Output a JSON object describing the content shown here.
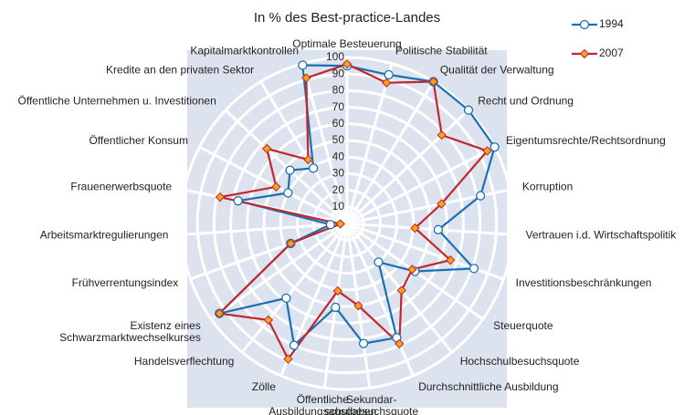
{
  "chart_data": {
    "type": "radar",
    "title": "In % des Best-practice-Landes",
    "categories": [
      "Optimale Besteuerung",
      "Politische Stabilität",
      "Qualität der Verwaltung",
      "Recht und Ordnung",
      "Eigentumsrechte/Rechtsordnung",
      "Korruption",
      "Vertrauen i.d. Wirtschaftspolitik",
      "Investitionsbeschränkungen",
      "Steuerquote",
      "Hochschulbesuchsquote",
      "Durchschnittliche Ausbildung",
      "Sekundar-\nschulbesuchsquote",
      "Öffentliche\nAusbildungsausgaben",
      "Zölle",
      "Handelsverflechtung",
      "Existenz eines\nSchwarzmarktwechselkurses",
      "Frühverrentungsindex",
      "Arbeitsmarktregulierungen",
      "Frauenerwerbsquote",
      "Öffentlicher Konsum",
      "Öffentliche Unternehmen u. Investitionen",
      "Kredite an den privaten Sektor",
      "Kapitalmarktkontrollen"
    ],
    "series": [
      {
        "name": "1994",
        "color": "#1a6fb5",
        "marker": "circle",
        "values": [
          95,
          93,
          100,
          100,
          100,
          82,
          55,
          81,
          50,
          30,
          75,
          73,
          51,
          80,
          58,
          94,
          36,
          10,
          67,
          40,
          47,
          39,
          99
        ]
      },
      {
        "name": "2007",
        "color": "#c0282d",
        "marker": "diamond",
        "values": [
          96,
          88,
          100,
          78,
          95,
          58,
          41,
          66,
          48,
          52,
          79,
          50,
          41,
          89,
          75,
          94,
          36,
          4,
          78,
          48,
          66,
          45,
          91
        ]
      }
    ],
    "ylim": [
      0,
      100
    ],
    "yticks": [
      10,
      20,
      30,
      40,
      50,
      60,
      70,
      80,
      90,
      100
    ],
    "grid": true,
    "legend": "top-right"
  }
}
